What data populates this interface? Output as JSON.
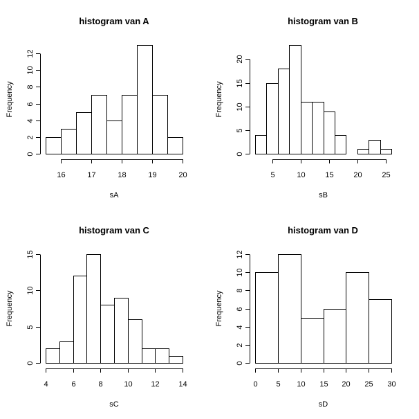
{
  "chart_data": [
    {
      "type": "bar",
      "title": "histogram van A",
      "xlabel": "sA",
      "ylabel": "Frequency",
      "bins": [
        {
          "start": 15.5,
          "end": 16.0,
          "count": 2
        },
        {
          "start": 16.0,
          "end": 16.5,
          "count": 3
        },
        {
          "start": 16.5,
          "end": 17.0,
          "count": 5
        },
        {
          "start": 17.0,
          "end": 17.5,
          "count": 7
        },
        {
          "start": 17.5,
          "end": 18.0,
          "count": 4
        },
        {
          "start": 18.0,
          "end": 18.5,
          "count": 7
        },
        {
          "start": 18.5,
          "end": 19.0,
          "count": 13
        },
        {
          "start": 19.0,
          "end": 19.5,
          "count": 7
        },
        {
          "start": 19.5,
          "end": 20.0,
          "count": 2
        }
      ],
      "xlim": [
        15.5,
        20
      ],
      "ylim": [
        0,
        13
      ],
      "xticks": [
        16,
        17,
        18,
        19,
        20
      ],
      "xtick_labels": [
        "16",
        "17",
        "18",
        "19",
        "20"
      ],
      "yticks": [
        0,
        2,
        4,
        6,
        8,
        10,
        12
      ],
      "ytick_labels": [
        "0",
        "2",
        "4",
        "6",
        "8",
        "10",
        "12"
      ]
    },
    {
      "type": "bar",
      "title": "histogram van B",
      "xlabel": "sB",
      "ylabel": "Frequency",
      "bins": [
        {
          "start": 2,
          "end": 4,
          "count": 4
        },
        {
          "start": 4,
          "end": 6,
          "count": 15
        },
        {
          "start": 6,
          "end": 8,
          "count": 18
        },
        {
          "start": 8,
          "end": 10,
          "count": 23
        },
        {
          "start": 10,
          "end": 12,
          "count": 11
        },
        {
          "start": 12,
          "end": 14,
          "count": 11
        },
        {
          "start": 14,
          "end": 16,
          "count": 9
        },
        {
          "start": 16,
          "end": 18,
          "count": 4
        },
        {
          "start": 18,
          "end": 20,
          "count": 0
        },
        {
          "start": 20,
          "end": 22,
          "count": 1
        },
        {
          "start": 22,
          "end": 24,
          "count": 3
        },
        {
          "start": 24,
          "end": 26,
          "count": 1
        }
      ],
      "xlim": [
        2,
        26
      ],
      "ylim": [
        0,
        23
      ],
      "xticks": [
        5,
        10,
        15,
        20,
        25
      ],
      "xtick_labels": [
        "5",
        "10",
        "15",
        "20",
        "25"
      ],
      "yticks": [
        0,
        5,
        10,
        15,
        20
      ],
      "ytick_labels": [
        "0",
        "5",
        "10",
        "15",
        "20"
      ]
    },
    {
      "type": "bar",
      "title": "histogram van C",
      "xlabel": "sC",
      "ylabel": "Frequency",
      "bins": [
        {
          "start": 4,
          "end": 5,
          "count": 2
        },
        {
          "start": 5,
          "end": 6,
          "count": 3
        },
        {
          "start": 6,
          "end": 7,
          "count": 12
        },
        {
          "start": 7,
          "end": 8,
          "count": 15
        },
        {
          "start": 8,
          "end": 9,
          "count": 8
        },
        {
          "start": 9,
          "end": 10,
          "count": 9
        },
        {
          "start": 10,
          "end": 11,
          "count": 6
        },
        {
          "start": 11,
          "end": 12,
          "count": 2
        },
        {
          "start": 12,
          "end": 13,
          "count": 2
        },
        {
          "start": 13,
          "end": 14,
          "count": 1
        }
      ],
      "xlim": [
        4,
        14
      ],
      "ylim": [
        0,
        15
      ],
      "xticks": [
        4,
        6,
        8,
        10,
        12,
        14
      ],
      "xtick_labels": [
        "4",
        "6",
        "8",
        "10",
        "12",
        "14"
      ],
      "yticks": [
        0,
        5,
        10,
        15
      ],
      "ytick_labels": [
        "0",
        "5",
        "10",
        "15"
      ]
    },
    {
      "type": "bar",
      "title": "histogram van D",
      "xlabel": "sD",
      "ylabel": "Frequency",
      "bins": [
        {
          "start": 0,
          "end": 5,
          "count": 10
        },
        {
          "start": 5,
          "end": 10,
          "count": 12
        },
        {
          "start": 10,
          "end": 15,
          "count": 5
        },
        {
          "start": 15,
          "end": 20,
          "count": 6
        },
        {
          "start": 20,
          "end": 25,
          "count": 10
        },
        {
          "start": 25,
          "end": 30,
          "count": 7
        }
      ],
      "xlim": [
        0,
        30
      ],
      "ylim": [
        0,
        12
      ],
      "xticks": [
        0,
        5,
        10,
        15,
        20,
        25,
        30
      ],
      "xtick_labels": [
        "0",
        "5",
        "10",
        "15",
        "20",
        "25",
        "30"
      ],
      "yticks": [
        0,
        2,
        4,
        6,
        8,
        10,
        12
      ],
      "ytick_labels": [
        "0",
        "2",
        "4",
        "6",
        "8",
        "10",
        "12"
      ]
    }
  ]
}
